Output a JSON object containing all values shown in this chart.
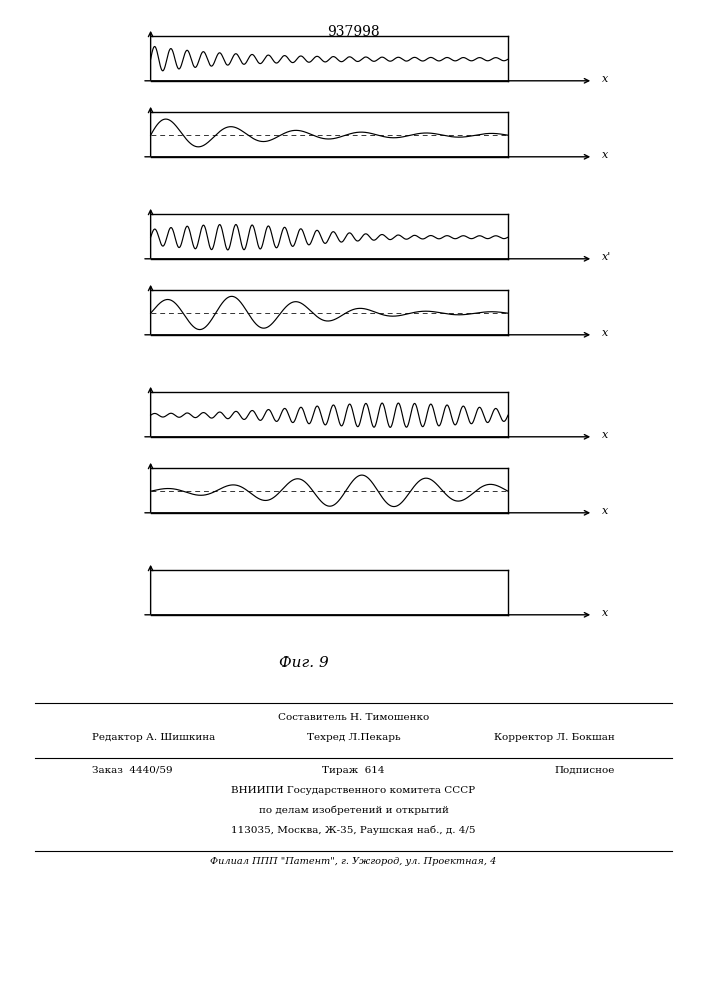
{
  "title": "937998",
  "fig_label": "Фиг. 9",
  "background": "#ffffff",
  "panels": [
    {
      "wave_desc": "high_freq_decay_start",
      "has_dashed": false,
      "x_label": "x"
    },
    {
      "wave_desc": "low_freq_decay_start",
      "has_dashed": true,
      "x_label": "x"
    },
    {
      "wave_desc": "high_freq_peak_early",
      "has_dashed": false,
      "x_label": "x'"
    },
    {
      "wave_desc": "low_freq_peak_early",
      "has_dashed": true,
      "x_label": "x"
    },
    {
      "wave_desc": "high_freq_peak_late",
      "has_dashed": false,
      "x_label": "x"
    },
    {
      "wave_desc": "low_freq_peak_late",
      "has_dashed": true,
      "x_label": "x"
    },
    {
      "wave_desc": "flat_rect",
      "has_dashed": false,
      "x_label": "x"
    }
  ],
  "footer_col1": "Редактор А. Шишкина",
  "footer_col2": "Техред Л.Пекарь",
  "footer_col3": "Корректор Л. Бокшан",
  "footer_sestavitel": "Составитель Н. Тимошенко",
  "footer_zakaz": "Заказ  4440/59",
  "footer_tirazh": "Тираж  614",
  "footer_podpisnoe": "Подписное",
  "footer_vniip1": "ВНИИПИ Государственного комитета СССР",
  "footer_vniip2": "по делам изобретений и открытий",
  "footer_addr": "113035, Москва, Ж-35, Раушская наб., д. 4/5",
  "footer_filial": "Филиал ППП \"Патент\", г. Ужгород, ул. Проектная, 4"
}
